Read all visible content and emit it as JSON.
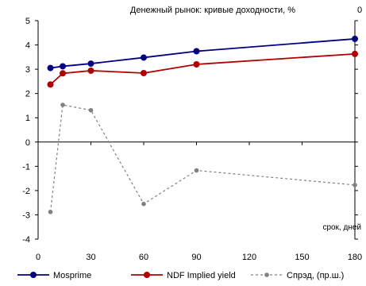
{
  "chart_data": {
    "type": "line",
    "title": "Денежный рынок: кривые доходности, %",
    "x": [
      7,
      14,
      30,
      60,
      90,
      180
    ],
    "x_ticks": [
      0,
      30,
      60,
      90,
      120,
      150,
      180
    ],
    "xlim": [
      0,
      180
    ],
    "x_scale_note": "",
    "xlabel": "срок, дней",
    "ylim": [
      -4,
      5
    ],
    "y_ticks": [
      -4,
      -3,
      -2,
      -1,
      0,
      1,
      2,
      3,
      4,
      5
    ],
    "y2_top_label": "0",
    "series": [
      {
        "name": "Mosprime",
        "color": "#000080",
        "dash": "solid",
        "values": [
          3.05,
          3.12,
          3.23,
          3.48,
          3.74,
          4.25
        ]
      },
      {
        "name": "NDF Implied yield",
        "color": "#b00000",
        "dash": "solid",
        "values": [
          2.37,
          2.83,
          2.94,
          2.84,
          3.2,
          3.63
        ]
      },
      {
        "name": "Спрэд, (пр.ш.)",
        "color": "#808080",
        "dash": "dashed",
        "values": [
          -2.88,
          1.53,
          1.31,
          -2.55,
          -1.17,
          -1.77
        ]
      }
    ],
    "grid": false,
    "legend": "bottom"
  }
}
